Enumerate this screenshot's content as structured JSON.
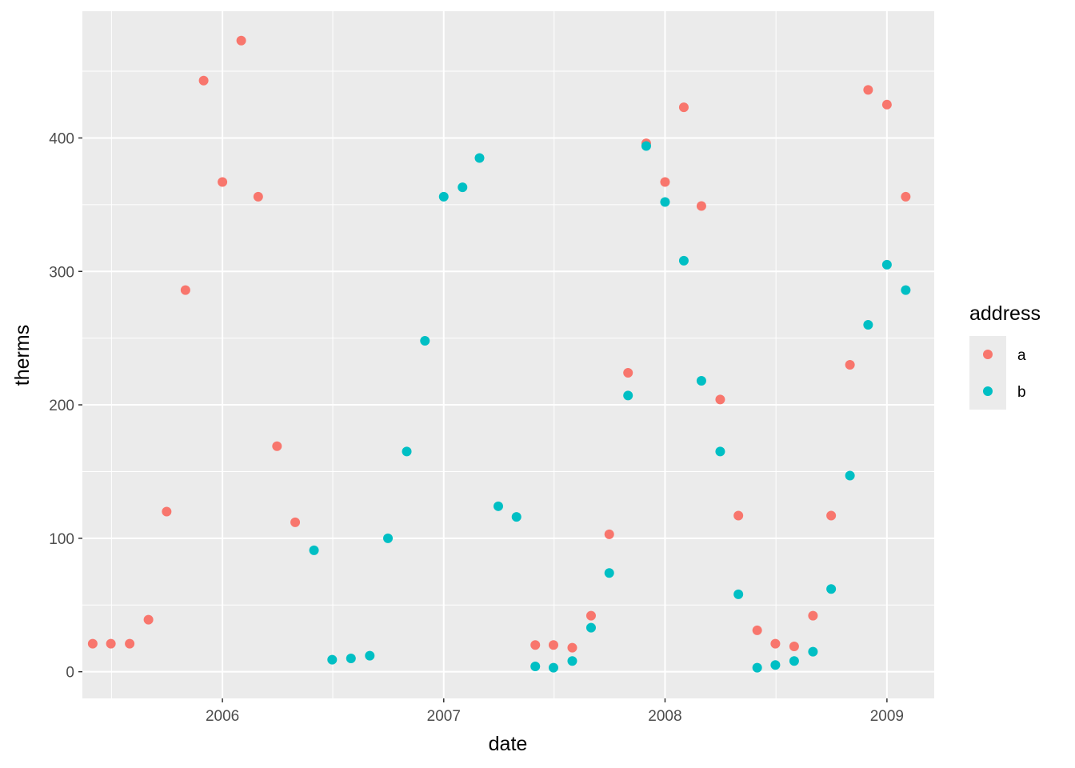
{
  "chart_data": {
    "type": "scatter",
    "xlabel": "date",
    "ylabel": "therms",
    "x_ticks": [
      "2006",
      "2007",
      "2008",
      "2009"
    ],
    "y_ticks": [
      "0",
      "100",
      "200",
      "300",
      "400"
    ],
    "ylim": [
      -20,
      495
    ],
    "xlim": [
      "2005-05-15",
      "2009-03-20"
    ],
    "grid": true,
    "legend": {
      "title": "address",
      "position": "right",
      "entries": [
        {
          "label": "a",
          "color": "#F8766D"
        },
        {
          "label": "b",
          "color": "#00BFC4"
        }
      ]
    },
    "series": [
      {
        "name": "a",
        "color": "#F8766D",
        "points": [
          {
            "x": "2005-06-01",
            "y": 21
          },
          {
            "x": "2005-07-01",
            "y": 21
          },
          {
            "x": "2005-08-01",
            "y": 21
          },
          {
            "x": "2005-09-01",
            "y": 39
          },
          {
            "x": "2005-10-01",
            "y": 120
          },
          {
            "x": "2005-11-01",
            "y": 286
          },
          {
            "x": "2005-12-01",
            "y": 443
          },
          {
            "x": "2006-01-01",
            "y": 367
          },
          {
            "x": "2006-02-01",
            "y": 473
          },
          {
            "x": "2006-03-01",
            "y": 356
          },
          {
            "x": "2006-04-01",
            "y": 169
          },
          {
            "x": "2006-05-01",
            "y": 112
          },
          {
            "x": "2007-06-01",
            "y": 20
          },
          {
            "x": "2007-07-01",
            "y": 20
          },
          {
            "x": "2007-08-01",
            "y": 18
          },
          {
            "x": "2007-09-01",
            "y": 42
          },
          {
            "x": "2007-10-01",
            "y": 103
          },
          {
            "x": "2007-11-01",
            "y": 224
          },
          {
            "x": "2007-12-01",
            "y": 396
          },
          {
            "x": "2008-01-01",
            "y": 367
          },
          {
            "x": "2008-02-01",
            "y": 423
          },
          {
            "x": "2008-03-01",
            "y": 349
          },
          {
            "x": "2008-04-01",
            "y": 204
          },
          {
            "x": "2008-05-01",
            "y": 117
          },
          {
            "x": "2008-06-01",
            "y": 31
          },
          {
            "x": "2008-07-01",
            "y": 21
          },
          {
            "x": "2008-08-01",
            "y": 19
          },
          {
            "x": "2008-09-01",
            "y": 42
          },
          {
            "x": "2008-10-01",
            "y": 117
          },
          {
            "x": "2008-11-01",
            "y": 230
          },
          {
            "x": "2008-12-01",
            "y": 436
          },
          {
            "x": "2009-01-01",
            "y": 425
          },
          {
            "x": "2009-02-01",
            "y": 356
          }
        ]
      },
      {
        "name": "b",
        "color": "#00BFC4",
        "points": [
          {
            "x": "2006-06-01",
            "y": 91
          },
          {
            "x": "2006-07-01",
            "y": 9
          },
          {
            "x": "2006-08-01",
            "y": 10
          },
          {
            "x": "2006-09-01",
            "y": 12
          },
          {
            "x": "2006-10-01",
            "y": 100
          },
          {
            "x": "2006-11-01",
            "y": 165
          },
          {
            "x": "2006-12-01",
            "y": 248
          },
          {
            "x": "2007-01-01",
            "y": 356
          },
          {
            "x": "2007-02-01",
            "y": 363
          },
          {
            "x": "2007-03-01",
            "y": 385
          },
          {
            "x": "2007-04-01",
            "y": 124
          },
          {
            "x": "2007-05-01",
            "y": 116
          },
          {
            "x": "2007-06-01",
            "y": 4
          },
          {
            "x": "2007-07-01",
            "y": 3
          },
          {
            "x": "2007-08-01",
            "y": 8
          },
          {
            "x": "2007-09-01",
            "y": 33
          },
          {
            "x": "2007-10-01",
            "y": 74
          },
          {
            "x": "2007-11-01",
            "y": 207
          },
          {
            "x": "2007-12-01",
            "y": 394
          },
          {
            "x": "2008-01-01",
            "y": 352
          },
          {
            "x": "2008-02-01",
            "y": 308
          },
          {
            "x": "2008-03-01",
            "y": 218
          },
          {
            "x": "2008-04-01",
            "y": 165
          },
          {
            "x": "2008-05-01",
            "y": 58
          },
          {
            "x": "2008-06-01",
            "y": 3
          },
          {
            "x": "2008-07-01",
            "y": 5
          },
          {
            "x": "2008-08-01",
            "y": 8
          },
          {
            "x": "2008-09-01",
            "y": 15
          },
          {
            "x": "2008-10-01",
            "y": 62
          },
          {
            "x": "2008-11-01",
            "y": 147
          },
          {
            "x": "2008-12-01",
            "y": 260
          },
          {
            "x": "2009-01-01",
            "y": 305
          },
          {
            "x": "2009-02-01",
            "y": 286
          }
        ]
      }
    ]
  }
}
